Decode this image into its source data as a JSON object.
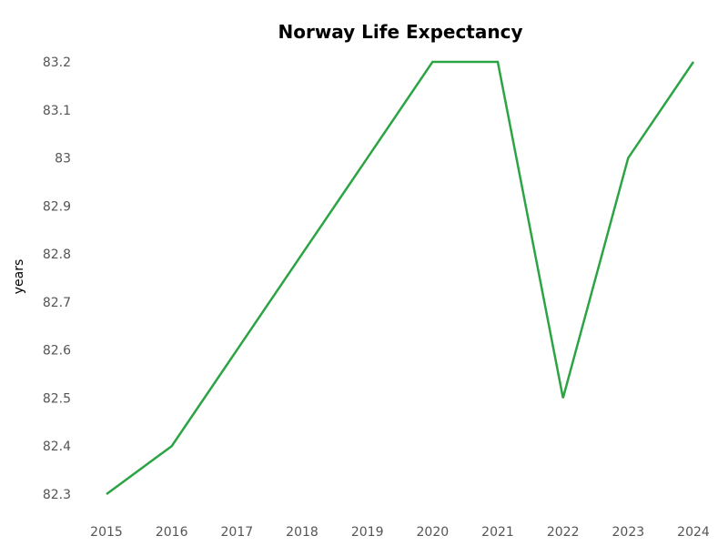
{
  "chart_data": {
    "type": "line",
    "title": "Norway Life Expectancy",
    "xlabel": "",
    "ylabel": "years",
    "x": [
      "2015",
      "2016",
      "2017",
      "2018",
      "2019",
      "2020",
      "2021",
      "2022",
      "2023",
      "2024"
    ],
    "series": [
      {
        "values": [
          82.3,
          82.4,
          82.6,
          82.8,
          83.0,
          83.2,
          83.2,
          82.5,
          83.0,
          83.2
        ],
        "color": "#2ca444"
      }
    ],
    "y_ticks": [
      "82.3",
      "82.4",
      "82.5",
      "82.6",
      "82.7",
      "82.8",
      "82.9",
      "83",
      "83.1",
      "83.2"
    ],
    "ylim": [
      82.3,
      83.2
    ],
    "grid": false,
    "legend": "none"
  }
}
